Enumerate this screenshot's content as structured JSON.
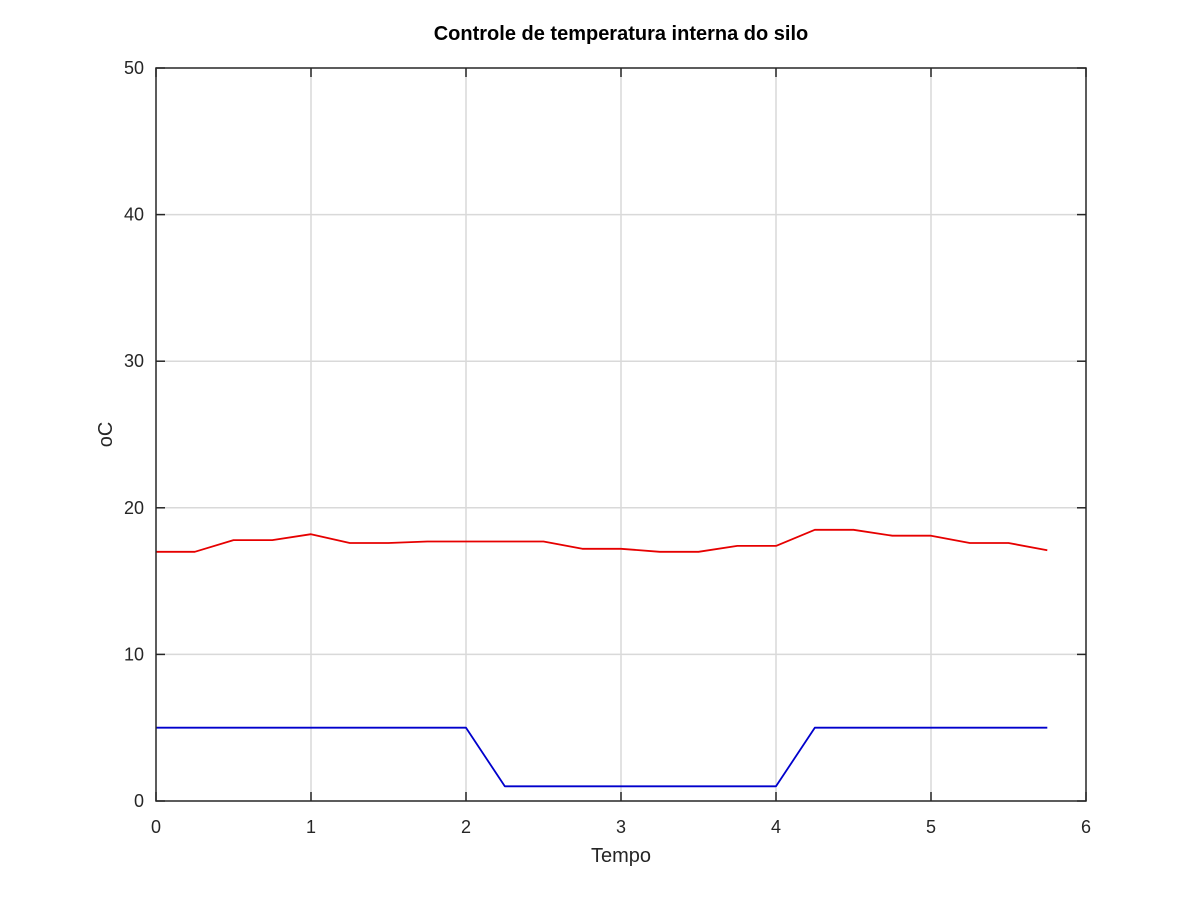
{
  "chart_data": {
    "type": "line",
    "title": "Controle de temperatura interna do silo",
    "xlabel": "Tempo",
    "ylabel": "oC",
    "xlim": [
      0,
      6
    ],
    "ylim": [
      0,
      50
    ],
    "x_ticks": [
      "0",
      "1",
      "2",
      "3",
      "4",
      "5",
      "6"
    ],
    "y_ticks": [
      "0",
      "10",
      "20",
      "30",
      "40",
      "50"
    ],
    "grid": true,
    "legend": "none",
    "series": [
      {
        "color": "#e60000",
        "x": [
          0,
          0.25,
          0.5,
          0.75,
          1,
          1.25,
          1.5,
          1.75,
          2,
          2.25,
          2.5,
          2.75,
          3,
          3.25,
          3.5,
          3.75,
          4,
          4.25,
          4.5,
          4.75,
          5,
          5.25,
          5.5,
          5.75
        ],
        "y": [
          17,
          17,
          17.8,
          17.8,
          18.2,
          17.6,
          17.6,
          17.7,
          17.7,
          17.7,
          17.7,
          17.2,
          17.2,
          17,
          17,
          17.4,
          17.4,
          18.5,
          18.5,
          18.1,
          18.1,
          17.6,
          17.6,
          17.1
        ]
      },
      {
        "color": "#0000cc",
        "x": [
          0,
          0.25,
          0.5,
          0.75,
          1,
          1.25,
          1.5,
          1.75,
          2,
          2.25,
          2.5,
          2.75,
          3,
          3.25,
          3.5,
          3.75,
          4,
          4.25,
          4.5,
          4.75,
          5,
          5.25,
          5.5,
          5.75
        ],
        "y": [
          5,
          5,
          5,
          5,
          5,
          5,
          5,
          5,
          5,
          1,
          1,
          1,
          1,
          1,
          1,
          1,
          1,
          5,
          5,
          5,
          5,
          5,
          5,
          5
        ]
      }
    ]
  }
}
